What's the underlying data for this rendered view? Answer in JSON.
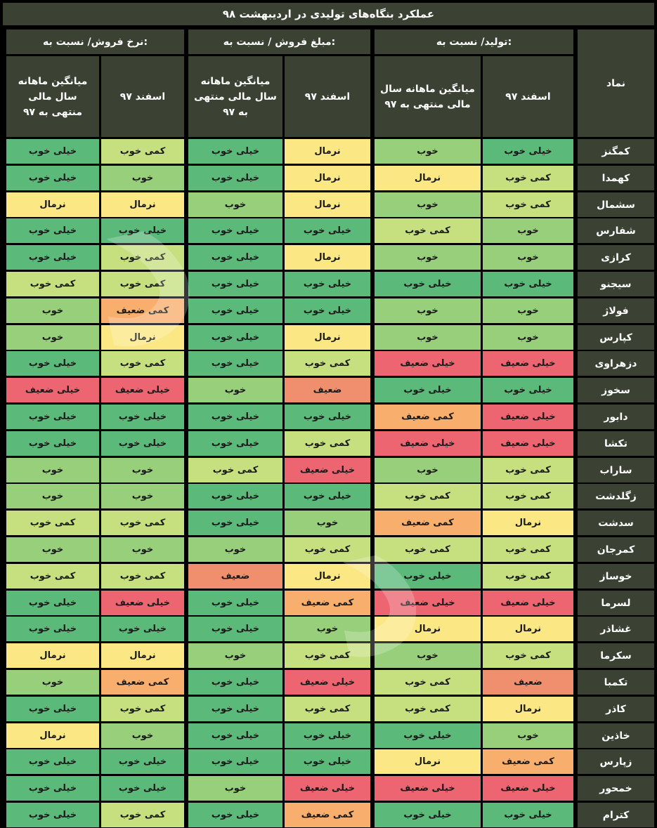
{
  "title": "عملکرد بنگاه‌های تولیدی در اردیبهشت ۹۸",
  "headers": {
    "symbol": "نماد",
    "groups": [
      "تولید/ نسبت به:",
      "مبلغ فروش / نسبت به:",
      "نرخ فروش/ نسبت به:"
    ],
    "sub": {
      "esfand": "اسفند ۹۷",
      "avg_a": "میانگین ماهانه سال مالی منتهی به ۹۷",
      "avg_b": "میانگین ماهانه سال مالی منتهی به ۹۷"
    }
  },
  "colors": {
    "خیلی خوب": "#5bb97a",
    "خوب": "#98cf7a",
    "کمی خوب": "#c6e07f",
    "نرمال": "#fbe783",
    "کمی ضعیف": "#f8ae6c",
    "ضعیف": "#f08f6e",
    "خیلی ضعیف": "#ec6571"
  },
  "rows": [
    {
      "symbol": "کمگنز",
      "values": [
        "خیلی خوب",
        "خوب",
        "نرمال",
        "خیلی خوب",
        "کمی خوب",
        "خیلی خوب"
      ]
    },
    {
      "symbol": "کهمدا",
      "values": [
        "کمی خوب",
        "نرمال",
        "نرمال",
        "خیلی خوب",
        "خوب",
        "خیلی خوب"
      ]
    },
    {
      "symbol": "سشمال",
      "values": [
        "کمی خوب",
        "خوب",
        "نرمال",
        "خوب",
        "نرمال",
        "نرمال"
      ]
    },
    {
      "symbol": "شفارس",
      "values": [
        "خوب",
        "کمی خوب",
        "خیلی خوب",
        "خیلی خوب",
        "خیلی خوب",
        "خیلی خوب"
      ]
    },
    {
      "symbol": "کرازی",
      "values": [
        "خوب",
        "خوب",
        "نرمال",
        "خیلی خوب",
        "کمی خوب",
        "خیلی خوب"
      ]
    },
    {
      "symbol": "سیجنو",
      "values": [
        "خیلی خوب",
        "خیلی خوب",
        "خیلی خوب",
        "خیلی خوب",
        "کمی خوب",
        "کمی خوب"
      ]
    },
    {
      "symbol": "فولاژ",
      "values": [
        "خوب",
        "خوب",
        "خیلی خوب",
        "خیلی خوب",
        "کمی ضعیف",
        "خوب"
      ]
    },
    {
      "symbol": "کپارس",
      "values": [
        "خوب",
        "خوب",
        "نرمال",
        "خیلی خوب",
        "نرمال",
        "خوب"
      ]
    },
    {
      "symbol": "دزهراوی",
      "values": [
        "خیلی ضعیف",
        "خیلی ضعیف",
        "کمی خوب",
        "خیلی خوب",
        "کمی خوب",
        "خیلی خوب"
      ]
    },
    {
      "symbol": "سخوز",
      "values": [
        "خیلی خوب",
        "خیلی خوب",
        "ضعیف",
        "خوب",
        "خیلی ضعیف",
        "خیلی ضعیف"
      ]
    },
    {
      "symbol": "دابور",
      "values": [
        "خیلی ضعیف",
        "کمی ضعیف",
        "خیلی خوب",
        "خیلی خوب",
        "خیلی خوب",
        "خیلی خوب"
      ]
    },
    {
      "symbol": "تکشا",
      "values": [
        "خیلی ضعیف",
        "خیلی ضعیف",
        "کمی خوب",
        "خیلی خوب",
        "خیلی خوب",
        "خیلی خوب"
      ]
    },
    {
      "symbol": "ساراب",
      "values": [
        "کمی خوب",
        "خوب",
        "خیلی ضعیف",
        "کمی خوب",
        "خوب",
        "خوب"
      ]
    },
    {
      "symbol": "زگلدشت",
      "values": [
        "کمی خوب",
        "کمی خوب",
        "خیلی خوب",
        "خیلی خوب",
        "خوب",
        "خوب"
      ]
    },
    {
      "symbol": "سدشت",
      "values": [
        "نرمال",
        "کمی ضعیف",
        "خوب",
        "خیلی خوب",
        "کمی خوب",
        "کمی خوب"
      ]
    },
    {
      "symbol": "کمرجان",
      "values": [
        "کمی خوب",
        "کمی خوب",
        "کمی خوب",
        "خوب",
        "خوب",
        "خوب"
      ]
    },
    {
      "symbol": "خوساز",
      "values": [
        "کمی خوب",
        "خیلی خوب",
        "نرمال",
        "ضعیف",
        "کمی خوب",
        "کمی خوب"
      ]
    },
    {
      "symbol": "لسرما",
      "values": [
        "خیلی ضعیف",
        "خیلی ضعیف",
        "کمی ضعیف",
        "خیلی خوب",
        "خیلی ضعیف",
        "خیلی خوب"
      ]
    },
    {
      "symbol": "غشاذر",
      "values": [
        "نرمال",
        "نرمال",
        "خوب",
        "خیلی خوب",
        "خیلی خوب",
        "خیلی خوب"
      ]
    },
    {
      "symbol": "سکرما",
      "values": [
        "کمی خوب",
        "خوب",
        "کمی خوب",
        "خوب",
        "نرمال",
        "نرمال"
      ]
    },
    {
      "symbol": "تکمبا",
      "values": [
        "ضعیف",
        "کمی خوب",
        "خیلی ضعیف",
        "خیلی خوب",
        "کمی ضعیف",
        "خوب"
      ]
    },
    {
      "symbol": "کاذر",
      "values": [
        "نرمال",
        "کمی خوب",
        "کمی خوب",
        "خیلی خوب",
        "کمی خوب",
        "خیلی خوب"
      ]
    },
    {
      "symbol": "خاذین",
      "values": [
        "خوب",
        "خیلی خوب",
        "خیلی خوب",
        "خیلی خوب",
        "خوب",
        "نرمال"
      ]
    },
    {
      "symbol": "زپارس",
      "values": [
        "کمی ضعیف",
        "نرمال",
        "خیلی خوب",
        "خیلی خوب",
        "خیلی خوب",
        "خیلی خوب"
      ]
    },
    {
      "symbol": "خمحور",
      "values": [
        "خیلی ضعیف",
        "خیلی ضعیف",
        "خیلی ضعیف",
        "خوب",
        "خیلی خوب",
        "خیلی خوب"
      ]
    },
    {
      "symbol": "کترام",
      "values": [
        "خیلی خوب",
        "خیلی خوب",
        "کمی ضعیف",
        "خیلی خوب",
        "کمی خوب",
        "خیلی خوب"
      ]
    }
  ]
}
